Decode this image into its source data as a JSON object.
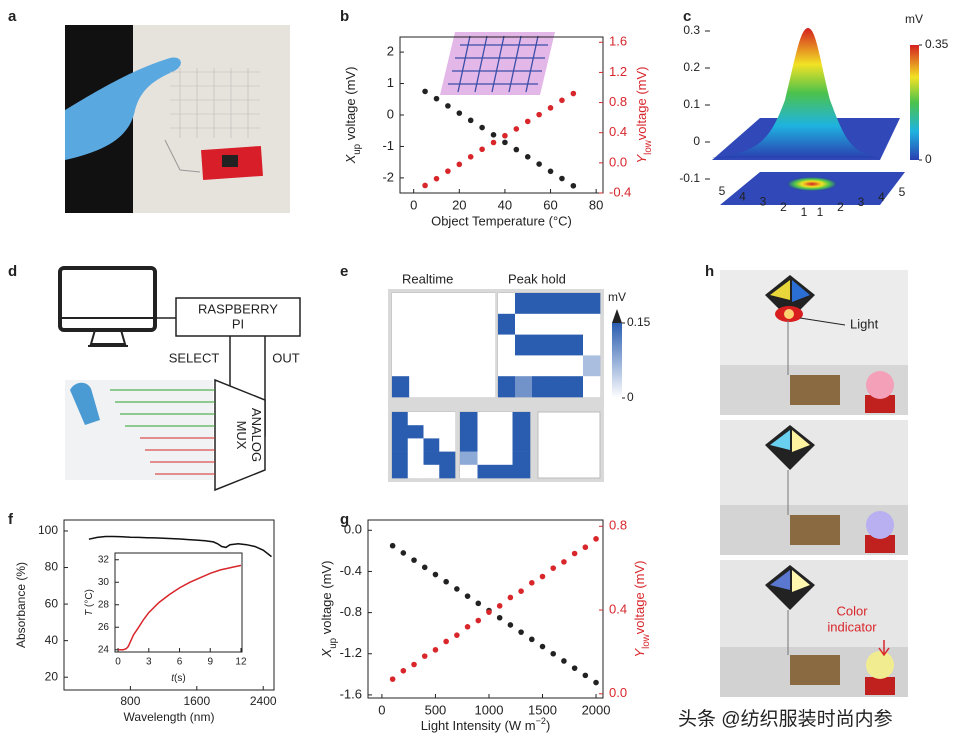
{
  "chart_data": [
    {
      "type": "scatter",
      "panel": "b",
      "x": [
        5,
        10,
        15,
        20,
        25,
        30,
        35,
        40,
        45,
        50,
        55,
        60,
        65,
        70
      ],
      "series": [
        {
          "color": "#222222",
          "values": [
            0.75,
            0.52,
            0.29,
            0.06,
            -0.17,
            -0.4,
            -0.63,
            -0.87,
            -1.1,
            -1.33,
            -1.56,
            -1.79,
            -2.02,
            -2.25
          ]
        },
        {
          "color": "#d8262b",
          "axis": "y2",
          "values": [
            -0.3,
            -0.21,
            -0.11,
            -0.02,
            0.08,
            0.18,
            0.27,
            0.36,
            0.45,
            0.55,
            0.64,
            0.73,
            0.83,
            0.92
          ]
        }
      ],
      "xlim": [
        -6,
        83
      ],
      "xticks": [
        0,
        20,
        40,
        60,
        80
      ],
      "ylim": [
        -2.48,
        2.48
      ],
      "yticks": [
        -2,
        -1,
        0,
        1,
        2
      ],
      "y2lim": [
        -0.4,
        1.67
      ],
      "y2ticks": [
        -0.4,
        {
          "value": 0,
          "label": "0.0"
        },
        0.4,
        0.8,
        1.2,
        1.6
      ],
      "y2color": "#d8262b",
      "xlabel": "Object Temperature (°C)",
      "ylabel": [
        {
          "text": "X",
          "italic": true
        },
        {
          "text": "up",
          "sub": true
        },
        {
          "text": " voltage (mV)"
        }
      ],
      "y2label": [
        {
          "text": "Y",
          "italic": true
        },
        {
          "text": "low",
          "sub": true
        },
        {
          "text": "voltage (mV)"
        }
      ]
    },
    {
      "type": "surface",
      "panel": "c",
      "zlim": [
        -0.1,
        0.3
      ],
      "zticks": [
        0.3,
        0.2,
        0.1,
        0,
        -0.1
      ],
      "xticks": [
        5,
        4,
        3,
        2,
        1
      ],
      "yticks": [
        1,
        2,
        3,
        4,
        5
      ],
      "colorbar": {
        "label": "mV",
        "lim": [
          0,
          0.35
        ],
        "ticks": [
          0,
          0.35
        ]
      }
    },
    {
      "type": "heatmap",
      "panel": "e",
      "titles": [
        "Realtime",
        "Peak hold"
      ],
      "colors": [
        "#ffffff",
        "#2a5db0"
      ],
      "matrices": [
        [
          [
            0,
            0,
            0,
            0,
            0,
            0
          ],
          [
            0,
            0,
            0,
            0,
            0,
            0
          ],
          [
            0,
            0,
            0,
            0,
            0,
            0
          ],
          [
            0,
            0,
            0,
            0,
            0,
            0
          ],
          [
            0.15,
            0,
            0,
            0,
            0,
            0
          ]
        ],
        [
          [
            0,
            0.15,
            0.15,
            0.15,
            0.15,
            0.15
          ],
          [
            0.15,
            0,
            0,
            0,
            0,
            0
          ],
          [
            0,
            0.15,
            0.15,
            0.15,
            0.15,
            0
          ],
          [
            0,
            0,
            0,
            0,
            0,
            0.06
          ],
          [
            0.15,
            0.1,
            0.15,
            0.15,
            0.15,
            0
          ]
        ],
        [
          [
            0.15,
            0,
            0,
            0
          ],
          [
            0.15,
            0.15,
            0,
            0
          ],
          [
            0.15,
            0,
            0.15,
            0
          ],
          [
            0.15,
            0,
            0.15,
            0.15
          ],
          [
            0.15,
            0,
            0,
            0.15
          ]
        ],
        [
          [
            0.15,
            0,
            0,
            0.15
          ],
          [
            0.15,
            0,
            0,
            0.15
          ],
          [
            0.15,
            0,
            0,
            0.15
          ],
          [
            0.08,
            0,
            0,
            0.15
          ],
          [
            0,
            0.15,
            0.15,
            0.15
          ]
        ]
      ],
      "colorbar": {
        "label": "mV",
        "lim": [
          0,
          0.15
        ],
        "ticks": [
          0,
          0.15
        ]
      }
    },
    {
      "type": "line",
      "panel": "f",
      "x": [
        300,
        400,
        500,
        600,
        700,
        800,
        900,
        1000,
        1100,
        1200,
        1300,
        1400,
        1500,
        1600,
        1700,
        1800,
        1850,
        1900,
        1950,
        2000,
        2100,
        2200,
        2300,
        2400,
        2500
      ],
      "series": [
        {
          "color": "#111111",
          "values": [
            95.5,
            96.5,
            97,
            97,
            96.8,
            96.6,
            96.5,
            96.3,
            96.2,
            96,
            95.8,
            95.6,
            95.3,
            95,
            94.6,
            94,
            93,
            91.5,
            91,
            92.5,
            93,
            92.5,
            91.5,
            89.5,
            86
          ]
        }
      ],
      "xlim": [
        0,
        2530
      ],
      "xticks": [
        800,
        1600,
        2400
      ],
      "ylim": [
        13,
        106
      ],
      "yticks": [
        20,
        40,
        60,
        80,
        100
      ],
      "xlabel": "Wavelength (nm)",
      "ylabel": "Absorbance (%)",
      "inset": {
        "type": "line",
        "x": [
          0,
          0.5,
          0.8,
          1,
          1.5,
          2,
          2.5,
          3,
          4,
          5,
          6,
          7,
          8,
          9,
          10,
          11,
          12
        ],
        "series": [
          {
            "color": "#d8262b",
            "values": [
              24,
              24,
              24.1,
              24.3,
              25.3,
              26,
              26.7,
              27.3,
              28.2,
              28.9,
              29.5,
              30,
              30.4,
              30.8,
              31.1,
              31.3,
              31.5
            ]
          }
        ],
        "xlim": [
          -0.3,
          12.1
        ],
        "xticks": [
          0,
          3,
          6,
          9,
          12
        ],
        "ylim": [
          23.8,
          32.6
        ],
        "yticks": [
          24,
          26,
          28,
          30,
          32
        ],
        "xlabel": [
          {
            "text": "t",
            "italic": true
          },
          {
            "text": "(s)"
          }
        ],
        "ylabel": [
          {
            "text": "T",
            "italic": true
          },
          {
            "text": " (°C)"
          }
        ]
      }
    },
    {
      "type": "scatter",
      "panel": "g",
      "x": [
        100,
        200,
        300,
        400,
        500,
        600,
        700,
        800,
        900,
        1000,
        1100,
        1200,
        1300,
        1400,
        1500,
        1600,
        1700,
        1800,
        1900,
        2000
      ],
      "series": [
        {
          "color": "#222222",
          "values": [
            -0.15,
            -0.22,
            -0.29,
            -0.36,
            -0.43,
            -0.5,
            -0.57,
            -0.64,
            -0.71,
            -0.78,
            -0.85,
            -0.92,
            -0.99,
            -1.06,
            -1.13,
            -1.2,
            -1.27,
            -1.34,
            -1.41,
            -1.48
          ]
        },
        {
          "color": "#d8262b",
          "axis": "y2",
          "values": [
            0.07,
            0.11,
            0.14,
            0.18,
            0.21,
            0.25,
            0.28,
            0.32,
            0.35,
            0.39,
            0.42,
            0.46,
            0.49,
            0.53,
            0.56,
            0.6,
            0.63,
            0.67,
            0.7,
            0.74
          ]
        }
      ],
      "xlim": [
        -130,
        2065
      ],
      "xticks": [
        0,
        500,
        1000,
        1500,
        2000
      ],
      "ylim": [
        -1.63,
        0.1
      ],
      "yticks": [
        -1.6,
        -1.2,
        -0.8,
        -0.4,
        {
          "value": 0,
          "label": "0.0"
        }
      ],
      "y2lim": [
        -0.02,
        0.83
      ],
      "y2ticks": [
        {
          "value": 0,
          "label": "0.0"
        },
        0.4,
        0.8
      ],
      "y2color": "#d8262b",
      "xlabel": [
        {
          "text": "Light Intensity (W m"
        },
        {
          "text": "−2",
          "sup": true
        },
        {
          "text": ")"
        }
      ],
      "ylabel": [
        {
          "text": "X",
          "italic": true
        },
        {
          "text": "up",
          "sub": true
        },
        {
          "text": " voltage (mV)"
        }
      ],
      "y2label": [
        {
          "text": "Y",
          "italic": true
        },
        {
          "text": "low",
          "sub": true
        },
        {
          "text": "voltage (mV)"
        }
      ]
    }
  ],
  "figure": {
    "a": {
      "panel": "a"
    },
    "d": {
      "panel": "d",
      "board": [
        "RASPBERRY",
        "PI"
      ],
      "select": "SELECT",
      "out": "OUT",
      "mux": [
        "ANALOG",
        "MUX"
      ]
    },
    "h": {
      "panel": "h",
      "light": "Light",
      "indicator": [
        "Color",
        "indicator"
      ]
    },
    "watermark": "头条 @纺织服装时尚内参"
  }
}
